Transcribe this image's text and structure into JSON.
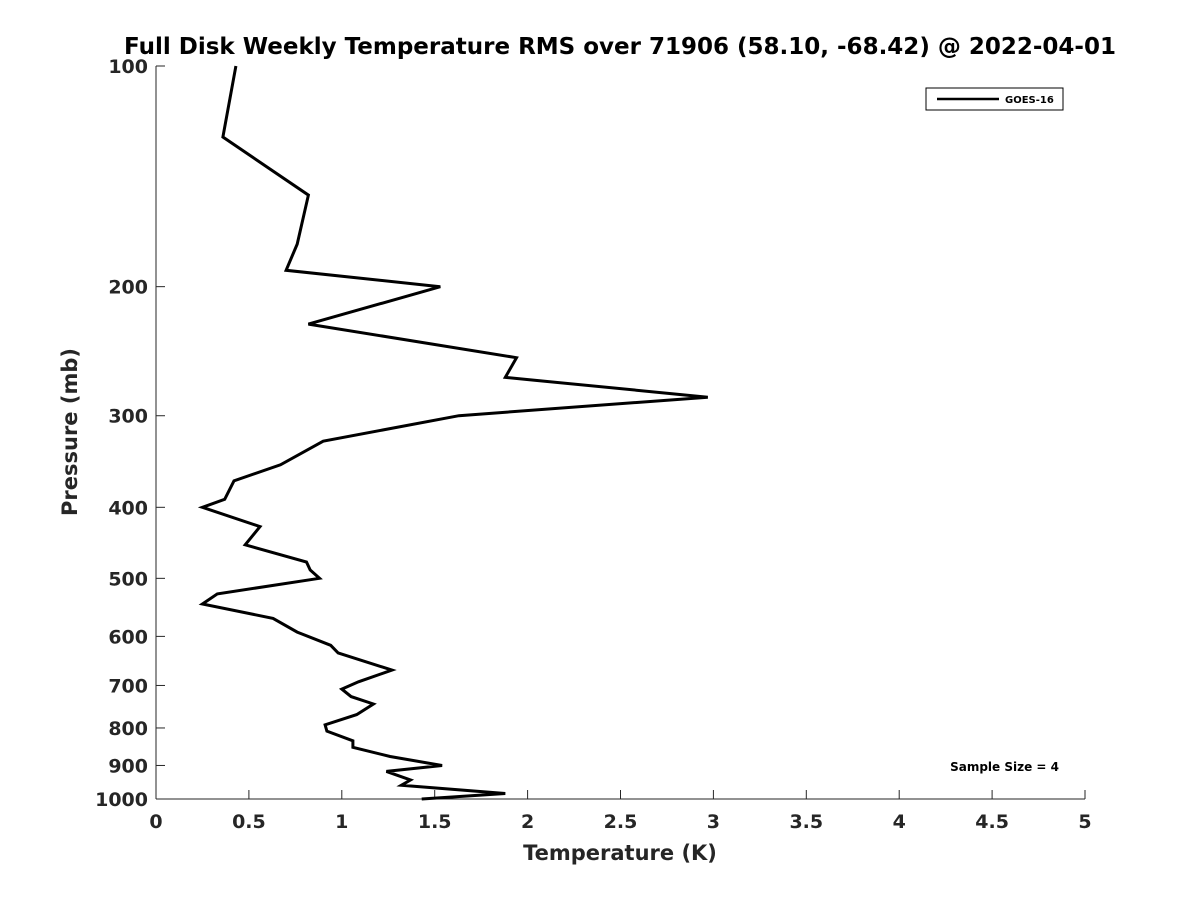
{
  "chart_data": {
    "type": "line",
    "title": "Full Disk Weekly Temperature RMS over 71906 (58.10, -68.42) @ 2022-04-01",
    "xlabel": "Temperature (K)",
    "ylabel": "Pressure (mb)",
    "xlim": [
      0,
      5
    ],
    "ylim": [
      100,
      1000
    ],
    "yscale": "log",
    "yaxis_reversed": true,
    "grid": false,
    "legend_position": "top-right",
    "xticks": [
      0,
      0.5,
      1,
      1.5,
      2,
      2.5,
      3,
      3.5,
      4,
      4.5,
      5
    ],
    "xtick_labels": [
      "0",
      "0.5",
      "1",
      "1.5",
      "2",
      "2.5",
      "3",
      "3.5",
      "4",
      "4.5",
      "5"
    ],
    "yticks": [
      100,
      200,
      300,
      400,
      500,
      600,
      700,
      800,
      900,
      1000
    ],
    "ytick_labels": [
      "100",
      "200",
      "300",
      "400",
      "500",
      "600",
      "700",
      "800",
      "900",
      "1000"
    ],
    "annotation": "Sample Size = 4",
    "series": [
      {
        "name": "GOES-16",
        "color": "#000000",
        "points": [
          [
            0.43,
            100
          ],
          [
            0.36,
            125
          ],
          [
            0.82,
            150
          ],
          [
            0.76,
            175
          ],
          [
            0.7,
            190
          ],
          [
            1.53,
            200
          ],
          [
            0.82,
            225
          ],
          [
            1.94,
            250
          ],
          [
            1.88,
            266
          ],
          [
            2.97,
            283
          ],
          [
            1.63,
            300
          ],
          [
            0.9,
            325
          ],
          [
            0.67,
            350
          ],
          [
            0.42,
            368
          ],
          [
            0.37,
            390
          ],
          [
            0.25,
            400
          ],
          [
            0.56,
            425
          ],
          [
            0.48,
            450
          ],
          [
            0.81,
            475
          ],
          [
            0.83,
            487
          ],
          [
            0.88,
            500
          ],
          [
            0.33,
            525
          ],
          [
            0.25,
            542
          ],
          [
            0.63,
            567
          ],
          [
            0.76,
            592
          ],
          [
            0.94,
            617
          ],
          [
            0.98,
            632
          ],
          [
            1.27,
            667
          ],
          [
            1.09,
            692
          ],
          [
            1.0,
            708
          ],
          [
            1.05,
            725
          ],
          [
            1.17,
            742
          ],
          [
            1.08,
            767
          ],
          [
            0.91,
            792
          ],
          [
            0.92,
            808
          ],
          [
            1.06,
            833
          ],
          [
            1.06,
            850
          ],
          [
            1.26,
            875
          ],
          [
            1.54,
            900
          ],
          [
            1.24,
            917
          ],
          [
            1.37,
            942
          ],
          [
            1.32,
            958
          ],
          [
            1.88,
            983
          ],
          [
            1.43,
            1000
          ]
        ]
      }
    ]
  }
}
